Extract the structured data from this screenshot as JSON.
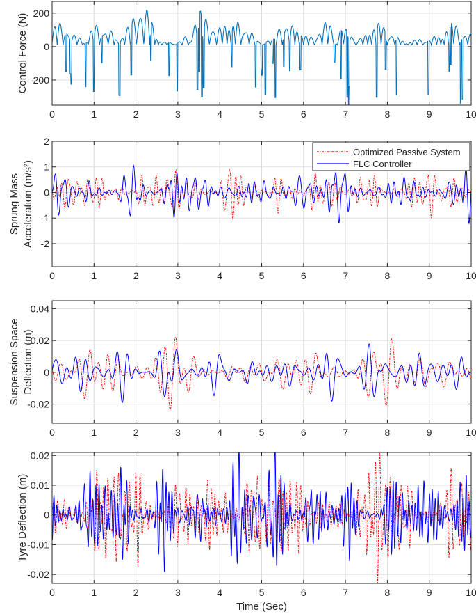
{
  "chart_data": [
    {
      "type": "line",
      "ylabel": [
        "Control Force (N)"
      ],
      "xlim": [
        0,
        10
      ],
      "ylim": [
        -350,
        270
      ],
      "xticks": [
        "0",
        "1",
        "2",
        "3",
        "4",
        "5",
        "6",
        "7",
        "8",
        "9",
        "10"
      ],
      "yticks": [
        {
          "value": -200,
          "label": "-200"
        },
        {
          "value": 0,
          "label": "0"
        },
        {
          "value": 200,
          "label": "200"
        }
      ],
      "grid": true,
      "series": [
        {
          "name": "Control Force",
          "color": "#0072BD",
          "amplitude": 215,
          "freq": 4.6,
          "seed": 11,
          "sparse": true
        }
      ]
    },
    {
      "type": "line",
      "ylabel": [
        "Sprung Mass",
        "Acceleration (m/s²)"
      ],
      "xlim": [
        0,
        10
      ],
      "ylim": [
        -2.9,
        2
      ],
      "xticks": [
        "0",
        "1",
        "2",
        "3",
        "4",
        "5",
        "6",
        "7",
        "8",
        "9",
        "10"
      ],
      "yticks": [
        {
          "value": -2,
          "label": "-2"
        },
        {
          "value": -1,
          "label": "-1"
        },
        {
          "value": 0,
          "label": "0"
        },
        {
          "value": 1,
          "label": "1"
        },
        {
          "value": 2,
          "label": "2"
        }
      ],
      "grid": true,
      "legend": {
        "position": "top-right",
        "entries": [
          "Optimized Passive System",
          "FLC Controller"
        ]
      },
      "series": [
        {
          "name": "Optimized Passive System",
          "color": "#ff0000",
          "style": "dashdot",
          "amplitude": 1.2,
          "freq": 6.2,
          "seed": 23
        },
        {
          "name": "FLC Controller",
          "color": "#0000ff",
          "style": "solid",
          "amplitude": 0.85,
          "freq": 6.2,
          "seed": 29
        }
      ]
    },
    {
      "type": "line",
      "ylabel": [
        "Suspension Space",
        "Deflection (m)"
      ],
      "xlim": [
        0,
        10
      ],
      "ylim": [
        -0.032,
        0.045
      ],
      "xticks": [
        "0",
        "1",
        "2",
        "3",
        "4",
        "5",
        "6",
        "7",
        "8",
        "9",
        "10"
      ],
      "yticks": [
        {
          "value": -0.02,
          "label": "-0.02"
        },
        {
          "value": 0,
          "label": "0"
        },
        {
          "value": 0.02,
          "label": "0.02"
        },
        {
          "value": 0.04,
          "label": "0.04"
        }
      ],
      "grid": true,
      "series": [
        {
          "name": "Optimized Passive System",
          "color": "#ff0000",
          "style": "dashdot",
          "amplitude": 0.022,
          "freq": 3.6,
          "seed": 37
        },
        {
          "name": "FLC Controller",
          "color": "#0000ff",
          "style": "solid",
          "amplitude": 0.018,
          "freq": 3.6,
          "seed": 41
        }
      ]
    },
    {
      "type": "line",
      "ylabel": [
        "Tyre Deflection (m)"
      ],
      "xlabel": "Time (Sec)",
      "xlim": [
        0,
        10
      ],
      "ylim": [
        -0.023,
        0.021
      ],
      "xticks": [
        "0",
        "1",
        "2",
        "3",
        "4",
        "5",
        "6",
        "7",
        "8",
        "9",
        "10"
      ],
      "yticks": [
        {
          "value": -0.02,
          "label": "-0.02"
        },
        {
          "value": -0.01,
          "label": "-0.01"
        },
        {
          "value": 0,
          "label": "0"
        },
        {
          "value": 0.01,
          "label": "0.01"
        },
        {
          "value": 0.02,
          "label": "0.02"
        }
      ],
      "grid": true,
      "series": [
        {
          "name": "Optimized Passive System",
          "color": "#ff0000",
          "style": "dashdot",
          "amplitude": 0.017,
          "freq": 10.5,
          "seed": 53
        },
        {
          "name": "FLC Controller",
          "color": "#0000ff",
          "style": "solid",
          "amplitude": 0.016,
          "freq": 10.5,
          "seed": 59
        }
      ]
    }
  ]
}
